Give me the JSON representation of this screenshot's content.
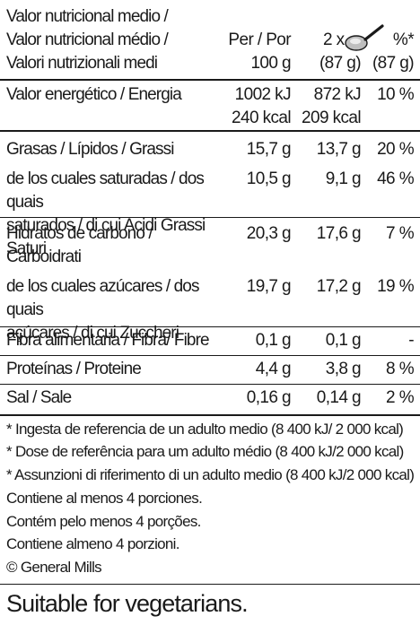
{
  "header": {
    "title": "Valor nutricional medio /\nValor nutricional médio /\nValori nutrizionali medi",
    "col_per": "Per / Por\n100 g",
    "col_serving_prefix": "2 x",
    "col_serving_unit": "(87 g)",
    "col_ri": "%*\n(87 g)",
    "spoon_icon": "spoon-icon"
  },
  "rows": [
    {
      "label": "Valor energético / Energia",
      "per100": "1002 kJ\n240 kcal",
      "serving": "872 kJ\n209 kcal",
      "ri": "10 %"
    },
    {
      "label": "Grasas / Lípidos / Grassi",
      "per100": "15,7 g",
      "serving": "13,7 g",
      "ri": "20 %"
    },
    {
      "label": "de los cuales saturadas / dos quais\nsaturados / di cui Acidi Grassi Saturi",
      "per100": "10,5 g",
      "serving": "9,1 g",
      "ri": "46 %"
    },
    {
      "label": "Hidratos de carbono /\nCarboidrati",
      "per100": "20,3 g",
      "serving": "17,6 g",
      "ri": "7 %"
    },
    {
      "label": "de los cuales azúcares / dos quais\naçúcares / di cui Zuccheri",
      "per100": "19,7 g",
      "serving": "17,2 g",
      "ri": "19 %"
    },
    {
      "label": "Fibra alimentaria / Fibra/ Fibre",
      "per100": "0,1 g",
      "serving": "0,1 g",
      "ri": "-"
    },
    {
      "label": "Proteínas / Proteine",
      "per100": "4,4 g",
      "serving": "3,8 g",
      "ri": "8 %"
    },
    {
      "label": "Sal / Sale",
      "per100": "0,16 g",
      "serving": "0,14 g",
      "ri": "2 %"
    }
  ],
  "footnotes": [
    "* Ingesta de referencia de un adulto medio (8 400 kJ/ 2 000 kcal)",
    "* Dose de referência para um adulto médio (8 400 kJ/2 000 kcal)",
    "* Assunzioni di riferimento di un adulto medio (8 400 kJ/2 000 kcal)",
    "Contiene al menos 4 porciones.",
    "Contém pelo menos 4 porções.",
    "Contiene almeno 4 porzioni.",
    "© General Mills"
  ],
  "vegetarian": "Suitable for vegetarians."
}
